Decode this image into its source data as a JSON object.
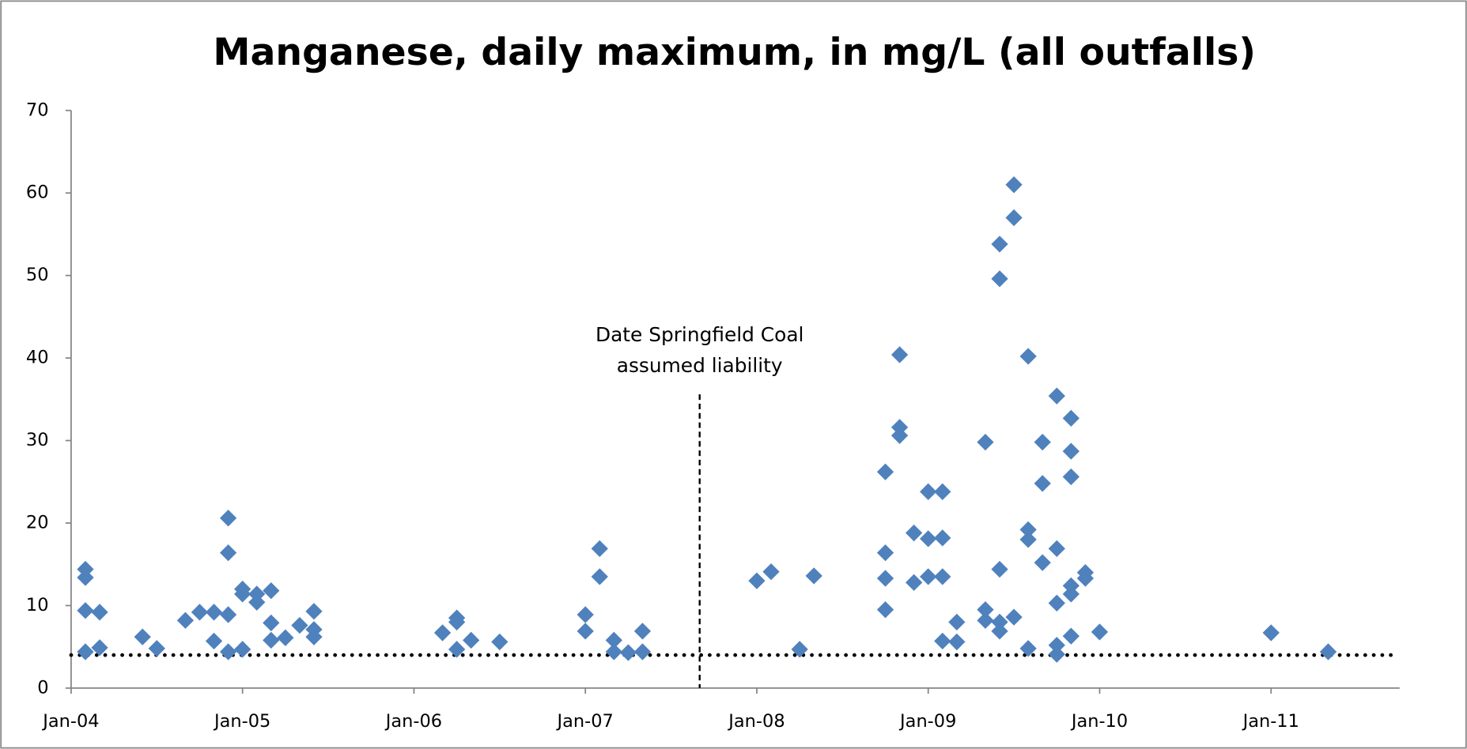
{
  "chart_data": {
    "type": "scatter",
    "title": "Manganese, daily maximum, in mg/L (all outfalls)",
    "xlim": [
      "2004-01",
      "2011-10"
    ],
    "xticks": [
      {
        "value": "2004-01",
        "label": "Jan-04"
      },
      {
        "value": "2005-01",
        "label": "Jan-05"
      },
      {
        "value": "2006-01",
        "label": "Jan-06"
      },
      {
        "value": "2007-01",
        "label": "Jan-07"
      },
      {
        "value": "2008-01",
        "label": "Jan-08"
      },
      {
        "value": "2009-01",
        "label": "Jan-09"
      },
      {
        "value": "2010-01",
        "label": "Jan-10"
      },
      {
        "value": "2011-01",
        "label": "Jan-11"
      }
    ],
    "ylim": [
      0,
      70
    ],
    "yticks": [
      0,
      10,
      20,
      30,
      40,
      50,
      60,
      70
    ],
    "grid": false,
    "reference_line": {
      "value": 4,
      "style": "dotted",
      "color": "#000000"
    },
    "annotation": {
      "lines": [
        "Date Springfield Coal",
        "assumed liability"
      ],
      "x": "2007-09",
      "top": 35.6
    },
    "series": [
      {
        "name": "Manganese",
        "color": "#4f81bd",
        "x": [
          "2004-02",
          "2004-02",
          "2004-02",
          "2004-02",
          "2004-03",
          "2004-03",
          "2004-06",
          "2004-07",
          "2004-09",
          "2004-10",
          "2004-11",
          "2004-11",
          "2004-12",
          "2004-12",
          "2004-12",
          "2004-12",
          "2005-01",
          "2005-01",
          "2005-01",
          "2005-02",
          "2005-02",
          "2005-03",
          "2005-03",
          "2005-03",
          "2005-04",
          "2005-05",
          "2005-06",
          "2005-06",
          "2005-06",
          "2006-03",
          "2006-04",
          "2006-04",
          "2006-04",
          "2006-05",
          "2006-07",
          "2007-01",
          "2007-01",
          "2007-02",
          "2007-02",
          "2007-03",
          "2007-03",
          "2007-04",
          "2007-05",
          "2007-05",
          "2008-01",
          "2008-02",
          "2008-04",
          "2008-05",
          "2008-10",
          "2008-10",
          "2008-10",
          "2008-10",
          "2008-11",
          "2008-11",
          "2008-11",
          "2008-12",
          "2008-12",
          "2009-01",
          "2009-01",
          "2009-01",
          "2009-02",
          "2009-02",
          "2009-02",
          "2009-02",
          "2009-03",
          "2009-03",
          "2009-05",
          "2009-05",
          "2009-05",
          "2009-06",
          "2009-06",
          "2009-06",
          "2009-06",
          "2009-06",
          "2009-07",
          "2009-07",
          "2009-07",
          "2009-08",
          "2009-08",
          "2009-08",
          "2009-08",
          "2009-09",
          "2009-09",
          "2009-09",
          "2009-10",
          "2009-10",
          "2009-10",
          "2009-10",
          "2009-10",
          "2009-11",
          "2009-11",
          "2009-11",
          "2009-11",
          "2009-11",
          "2009-11",
          "2009-12",
          "2009-12",
          "2010-01",
          "2011-01",
          "2011-05"
        ],
        "values": [
          14.4,
          13.4,
          9.4,
          4.4,
          9.2,
          4.9,
          6.2,
          4.8,
          8.2,
          9.2,
          9.2,
          5.7,
          20.6,
          16.4,
          8.9,
          4.4,
          12.0,
          11.4,
          4.7,
          11.4,
          10.4,
          11.8,
          7.9,
          5.8,
          6.1,
          7.6,
          9.3,
          7.1,
          6.2,
          6.7,
          8.5,
          8.0,
          4.7,
          5.8,
          5.6,
          8.9,
          6.9,
          16.9,
          13.5,
          5.8,
          4.4,
          4.3,
          6.9,
          4.4,
          13.0,
          14.1,
          4.7,
          13.6,
          26.2,
          16.4,
          13.3,
          9.5,
          40.4,
          31.6,
          30.6,
          18.8,
          12.8,
          23.8,
          18.1,
          13.5,
          23.8,
          18.2,
          13.5,
          5.7,
          8.0,
          5.6,
          29.8,
          9.5,
          8.2,
          53.8,
          49.6,
          14.4,
          8.0,
          6.9,
          61.0,
          57.0,
          8.6,
          40.2,
          19.2,
          18.0,
          4.8,
          29.8,
          24.8,
          15.2,
          35.4,
          16.9,
          10.3,
          5.2,
          4.1,
          32.7,
          28.7,
          25.6,
          12.4,
          11.4,
          6.3,
          14.0,
          13.3,
          6.8,
          6.7,
          4.4
        ]
      }
    ]
  }
}
